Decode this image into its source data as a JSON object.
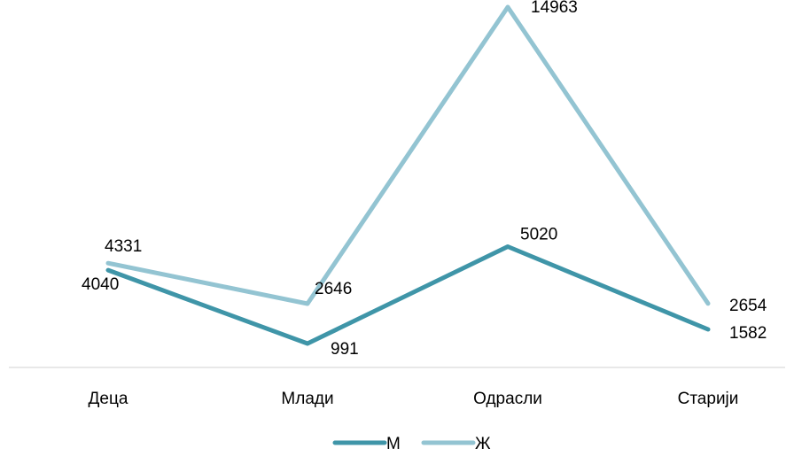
{
  "chart_data": {
    "type": "line",
    "categories": [
      "Деца",
      "Млади",
      "Одрасли",
      "Старији"
    ],
    "series": [
      {
        "name": "М",
        "values": [
          4040,
          991,
          5020,
          1582
        ],
        "color": "#3f95a8"
      },
      {
        "name": "Ж",
        "values": [
          4331,
          2646,
          14963,
          2654
        ],
        "color": "#93c4d2"
      }
    ],
    "ylim": [
      0,
      15000
    ],
    "grid": false,
    "legend": "bottom",
    "axis_color": "#d9d9d9",
    "title": "",
    "xlabel": "",
    "ylabel": ""
  }
}
